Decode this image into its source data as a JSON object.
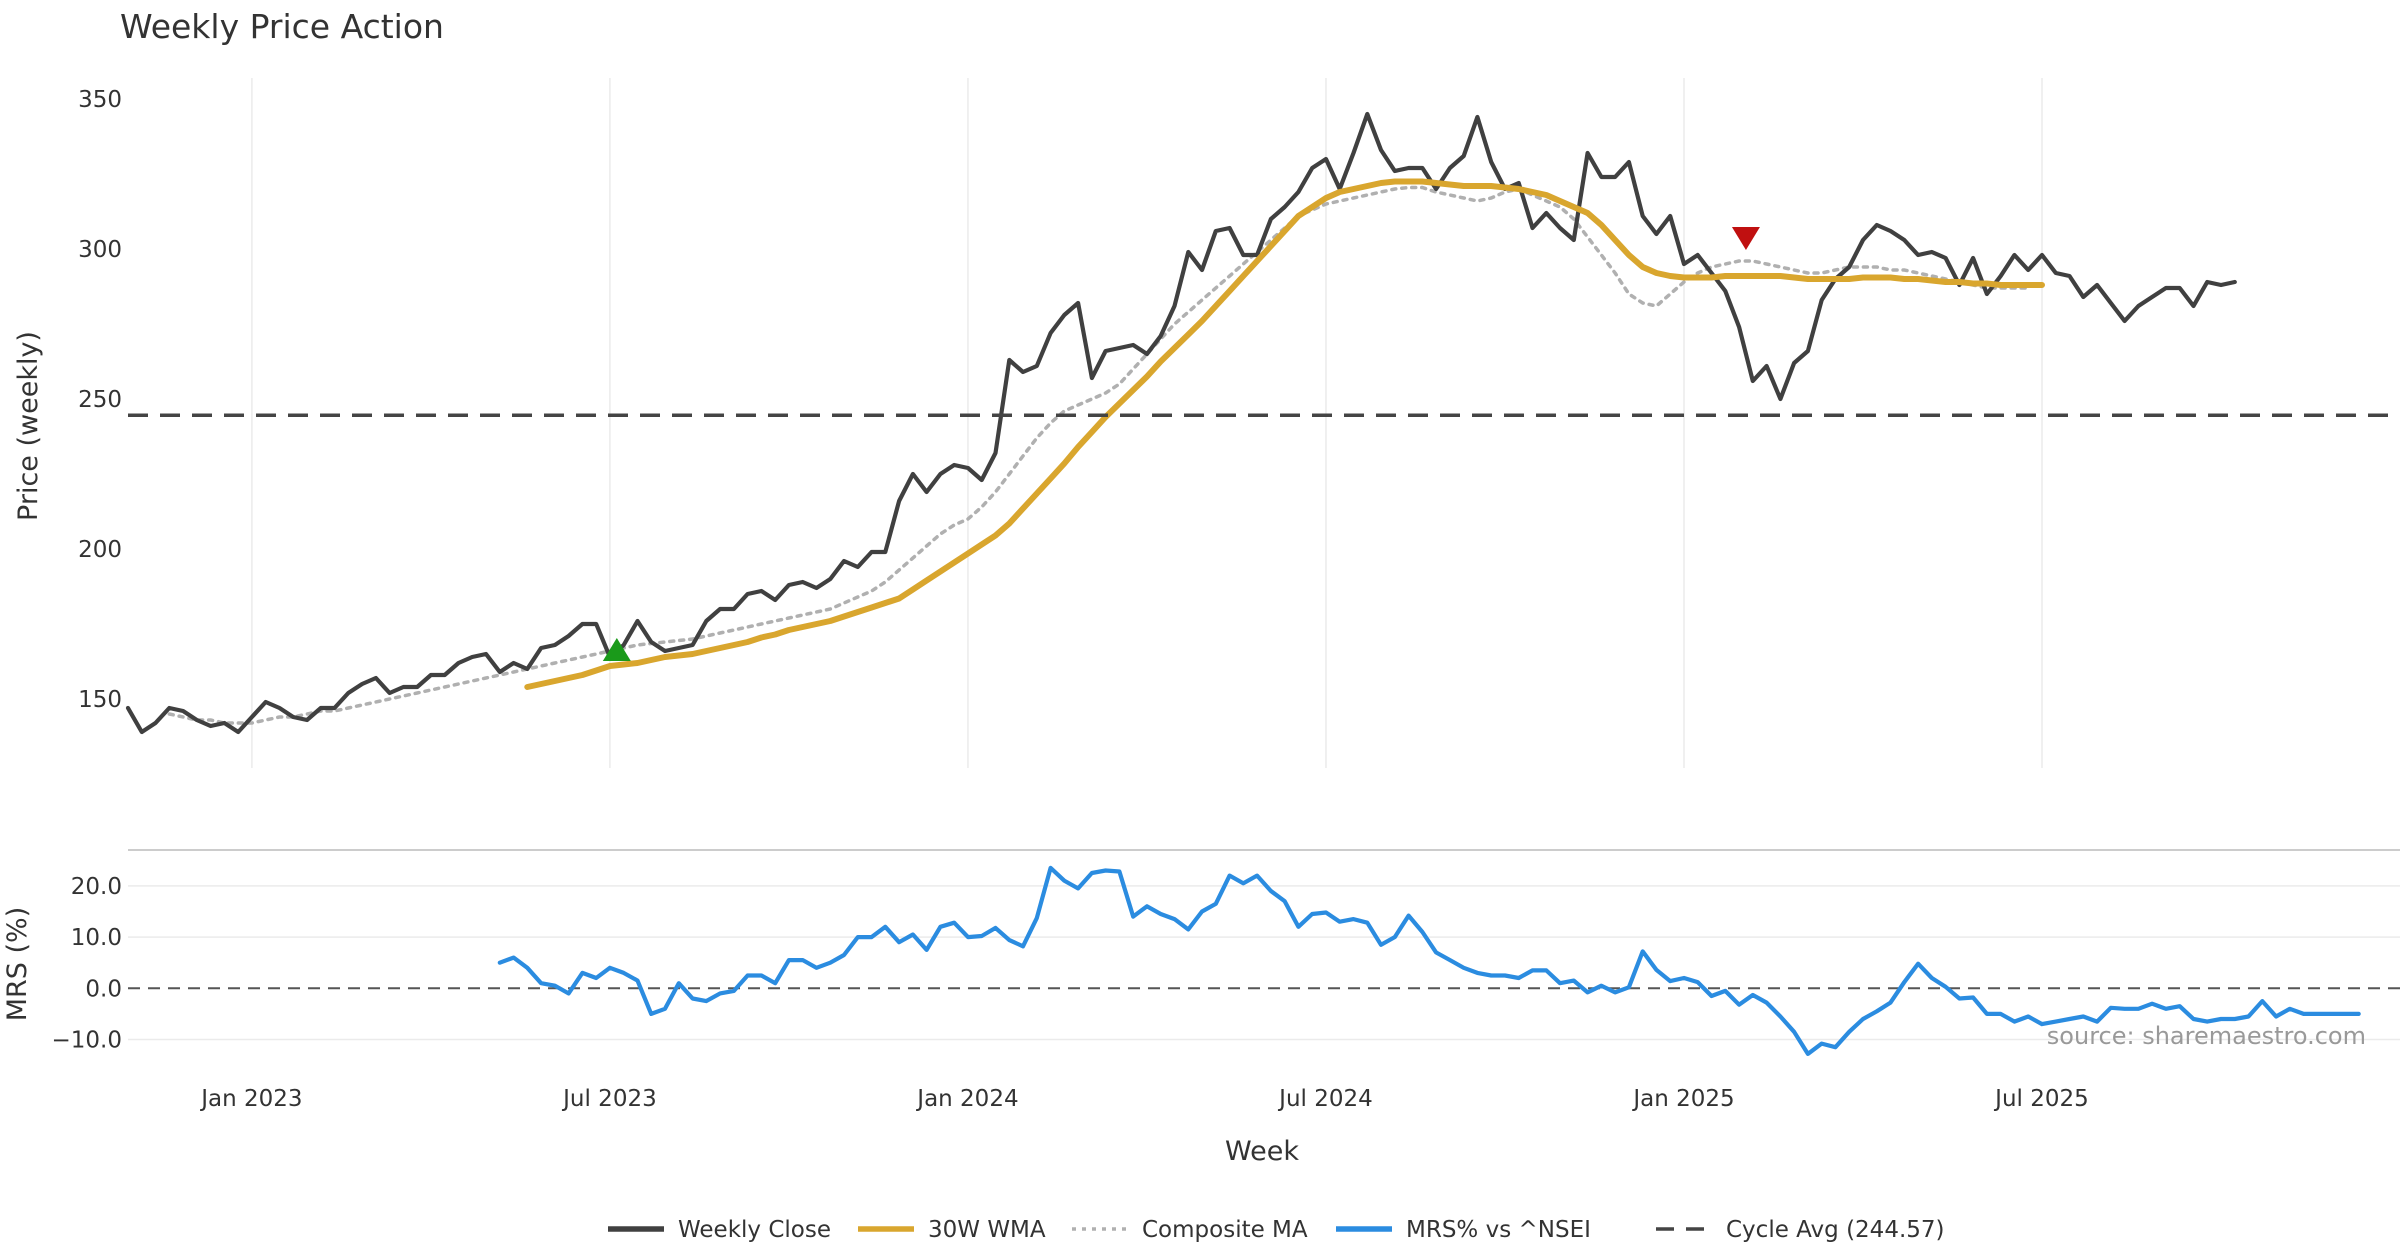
{
  "chart_data": {
    "type": "line",
    "title": "Weekly Price Action",
    "xlabel": "Week",
    "source": "source: sharemaestro.com",
    "x_ticks": [
      {
        "label": "Jan 2023",
        "week": 12
      },
      {
        "label": "Jul 2023",
        "week": 38
      },
      {
        "label": "Jan 2024",
        "week": 64
      },
      {
        "label": "Jul 2024",
        "week": 90
      },
      {
        "label": "Jan 2025",
        "week": 116
      },
      {
        "label": "Jul 2025",
        "week": 142
      }
    ],
    "x_range": [
      3,
      168
    ],
    "price_panel": {
      "ylabel": "Price (weekly)",
      "ylim": [
        127,
        357
      ],
      "yticks": [
        150,
        200,
        250,
        300,
        350
      ],
      "grid": true
    },
    "mrs_panel": {
      "ylabel": "MRS (%)",
      "ylim": [
        -14,
        27
      ],
      "yticks": [
        -10,
        0,
        10,
        20
      ],
      "ytick_labels": [
        "−10.0",
        "0.0",
        "10.0",
        "20.0"
      ],
      "grid": true
    },
    "cycle_avg": 244.57,
    "series": [
      {
        "name": "Weekly Close",
        "color": "#404040",
        "style": "solid",
        "panel": "price",
        "start_week": 3,
        "values": [
          147,
          139,
          142,
          147,
          146,
          143,
          141,
          142,
          139,
          144,
          149,
          147,
          144,
          143,
          147,
          147,
          152,
          155,
          157,
          152,
          154,
          154,
          158,
          158,
          162,
          164,
          165,
          159,
          162,
          160,
          167,
          168,
          171,
          175,
          175,
          164,
          168,
          176,
          169,
          166,
          167,
          168,
          176,
          180,
          180,
          185,
          186,
          183,
          188,
          189,
          187,
          190,
          196,
          194,
          199,
          199,
          216,
          225,
          219,
          225,
          228,
          227,
          223,
          232,
          263,
          259,
          261,
          272,
          278,
          282,
          257,
          266,
          267,
          268,
          265,
          271,
          281,
          299,
          293,
          306,
          307,
          298,
          298,
          310,
          314,
          319,
          327,
          330,
          320,
          332,
          345,
          333,
          326,
          327,
          327,
          320,
          327,
          331,
          344,
          329,
          320,
          322,
          307,
          312,
          307,
          303,
          332,
          324,
          324,
          329,
          311,
          305,
          311,
          295,
          298,
          292,
          286,
          274,
          256,
          261,
          250,
          262,
          266,
          283,
          290,
          294,
          303,
          308,
          306,
          303,
          298,
          299,
          297,
          288,
          297,
          285,
          291,
          298,
          293,
          298,
          292,
          291,
          284,
          288,
          282,
          276,
          281,
          284,
          287,
          287,
          281,
          289,
          288,
          289
        ]
      },
      {
        "name": "30W WMA",
        "color": "#d9a62e",
        "style": "solid",
        "panel": "price",
        "start_week": 32,
        "values": [
          154,
          155,
          156,
          157,
          158,
          159.5,
          161,
          161.5,
          162,
          163,
          164,
          164.5,
          165,
          166,
          167,
          168,
          169,
          170.5,
          171.5,
          173,
          174,
          175,
          176,
          177.5,
          179,
          180.5,
          182,
          183.5,
          186.5,
          189.5,
          192.5,
          195.5,
          198.5,
          201.5,
          204.5,
          208.5,
          213.5,
          218.5,
          223.5,
          228.5,
          234,
          239,
          244,
          248.5,
          253,
          257.5,
          262.5,
          267,
          271.5,
          276,
          281,
          286,
          291,
          296,
          301,
          306,
          311,
          314,
          317,
          319,
          320,
          321,
          322,
          322.5,
          322.5,
          322.5,
          322,
          321.5,
          321,
          321,
          321,
          320.5,
          320,
          319,
          318,
          316,
          314,
          312,
          308,
          303,
          298,
          294,
          292,
          291,
          290.5,
          290.5,
          290.5,
          291,
          291,
          291,
          291,
          291,
          290.5,
          290,
          290,
          290,
          290,
          290.5,
          290.5,
          290.5,
          290,
          290,
          289.5,
          289,
          289,
          288.5,
          288.5,
          288,
          288,
          288,
          288
        ]
      },
      {
        "name": "Composite MA",
        "color": "#b0b0b0",
        "style": "dotted",
        "panel": "price",
        "start_week": 6,
        "values": [
          145,
          144,
          143,
          143,
          142,
          142,
          142,
          143,
          144,
          144,
          145,
          146,
          146,
          147,
          148,
          149,
          150,
          151,
          152,
          153,
          154,
          155,
          156,
          157,
          158,
          159,
          160,
          161,
          162,
          163,
          164,
          165,
          166,
          167,
          168,
          168.5,
          169,
          169.5,
          170,
          171,
          172,
          173,
          174,
          175,
          176,
          177,
          178,
          179,
          180,
          182,
          184,
          186,
          189,
          193,
          197,
          201,
          205,
          208,
          210,
          214,
          219,
          225,
          231,
          237,
          242,
          246,
          248,
          250,
          252,
          255,
          260,
          265,
          270,
          275,
          279,
          283,
          287,
          291,
          295,
          299,
          303,
          307,
          311,
          313,
          315,
          316,
          317,
          318,
          319,
          320,
          320.5,
          320.5,
          319,
          318,
          317,
          316,
          317,
          319,
          320,
          318,
          316,
          314,
          310,
          304,
          298,
          292,
          285,
          282,
          281,
          285,
          289,
          292,
          294,
          295,
          296,
          296,
          295,
          294,
          293,
          292,
          292,
          293,
          294,
          294,
          294,
          293,
          293,
          292,
          291,
          290,
          289,
          288,
          287,
          287,
          287,
          287
        ]
      },
      {
        "name": "MRS% vs ^NSEI",
        "color": "#2b8ce0",
        "style": "solid",
        "panel": "mrs",
        "start_week": 30,
        "values": [
          5,
          6,
          4,
          1,
          0.5,
          -1,
          3,
          2,
          4,
          3,
          1.5,
          -5,
          -4,
          1,
          -2,
          -2.5,
          -1,
          -0.5,
          2.5,
          2.5,
          1,
          5.5,
          5.5,
          4,
          5,
          6.5,
          10,
          10,
          12,
          9,
          10.5,
          7.5,
          12,
          12.8,
          10,
          10.2,
          11.8,
          9.4,
          8.2,
          13.7,
          23.5,
          21,
          19.5,
          22.5,
          23,
          22.8,
          14,
          16,
          14.5,
          13.5,
          11.5,
          15,
          16.5,
          22,
          20.5,
          22,
          19,
          17,
          12,
          14.5,
          14.8,
          13,
          13.5,
          12.8,
          8.5,
          10,
          14.2,
          11,
          7,
          5.5,
          4,
          3,
          2.5,
          2.5,
          2,
          3.5,
          3.5,
          1,
          1.5,
          -0.8,
          0.5,
          -0.8,
          0.2,
          7.2,
          3.6,
          1.4,
          2,
          1.2,
          -1.5,
          -0.5,
          -3.2,
          -1.3,
          -2.8,
          -5.5,
          -8.5,
          -12.8,
          -10.8,
          -11.5,
          -8.5,
          -6,
          -4.5,
          -2.8,
          1.2,
          4.8,
          2,
          0.3,
          -2,
          -1.8,
          -5,
          -5,
          -6.5,
          -5.5,
          -7,
          -6.5,
          -6,
          -5.5,
          -6.5,
          -3.8,
          -4,
          -4,
          -3,
          -4,
          -3.5,
          -6,
          -6.5,
          -6,
          -6,
          -5.5,
          -2.5,
          -5.5,
          -4,
          -5,
          -5,
          -5,
          -5,
          -5
        ]
      },
      {
        "name": "Cycle Avg (244.57)",
        "color": "#444444",
        "style": "dashed",
        "panel": "price"
      }
    ],
    "signals": [
      {
        "type": "buy",
        "week": 38.5,
        "value": 166,
        "color": "#1a9a1a"
      },
      {
        "type": "sell",
        "week": 120.5,
        "value": 304,
        "color": "#c01010"
      }
    ]
  }
}
